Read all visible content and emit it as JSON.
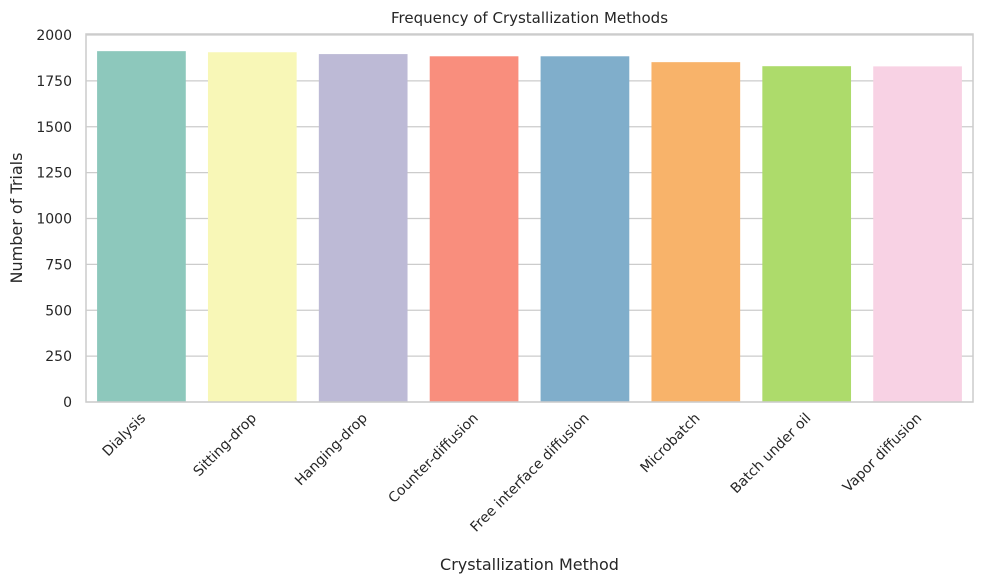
{
  "chart_data": {
    "type": "bar",
    "title": "Frequency of Crystallization Methods",
    "xlabel": "Crystallization Method",
    "ylabel": "Number of Trials",
    "categories": [
      "Dialysis",
      "Sitting-drop",
      "Hanging-drop",
      "Counter-diffusion",
      "Free interface diffusion",
      "Microbatch",
      "Batch under oil",
      "Vapor diffusion"
    ],
    "values": [
      1912,
      1906,
      1896,
      1884,
      1884,
      1852,
      1830,
      1829
    ],
    "colors": [
      "#8dc8bc",
      "#f8f7b7",
      "#bdbad6",
      "#f98e7d",
      "#80aecb",
      "#f8b36a",
      "#addb6b",
      "#f8d2e4"
    ],
    "ylim": [
      0,
      2000
    ],
    "yticks": [
      "0",
      "250",
      "500",
      "750",
      "1000",
      "1250",
      "1500",
      "1750",
      "2000"
    ],
    "grid": "horizontal",
    "legend": "none"
  }
}
